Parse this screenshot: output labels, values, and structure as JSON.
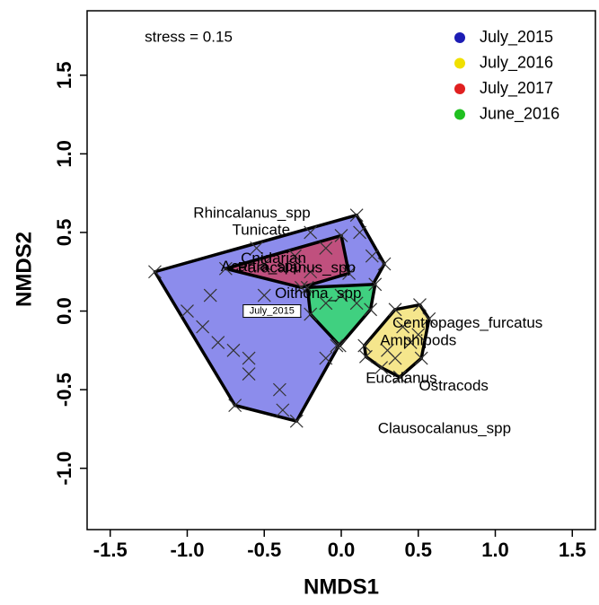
{
  "chart_data": {
    "type": "scatter",
    "annotation": "stress = 0.15",
    "xlabel": "NMDS1",
    "ylabel": "NMDS2",
    "xlim": [
      -1.65,
      1.65
    ],
    "ylim": [
      -1.39,
      1.91
    ],
    "xticks": [
      -1.5,
      {
        "value": -1,
        "label": "-1.0"
      },
      -0.5,
      {
        "value": 0,
        "label": "0.0"
      },
      0.5,
      {
        "value": 1,
        "label": "1.0"
      },
      1.5
    ],
    "yticks": [
      {
        "value": -1,
        "label": "-1.0"
      },
      -0.5,
      {
        "value": 0,
        "label": "0.0"
      },
      0.5,
      {
        "value": 1,
        "label": "1.0"
      },
      1.5
    ],
    "legend": "top-right",
    "series": [
      {
        "name": "July_2015",
        "color": "#1c1cb4",
        "fill": "#8c8cec",
        "x": [
          -1.21,
          0.1,
          0.28,
          -0.03,
          -0.29,
          -0.38,
          -0.69,
          -1.0,
          -0.8,
          -0.6,
          -0.7,
          -0.5,
          -0.4,
          -0.6,
          -0.2,
          -0.3,
          -0.9,
          -0.55,
          0.12,
          0.2,
          -0.1,
          -0.85
        ],
        "y": [
          0.25,
          0.61,
          0.3,
          -0.22,
          -0.7,
          -0.63,
          -0.6,
          0.0,
          -0.2,
          -0.3,
          -0.25,
          0.1,
          -0.5,
          -0.4,
          0.5,
          0.0,
          -0.1,
          0.4,
          0.5,
          0.35,
          -0.3,
          0.1
        ]
      },
      {
        "name": "July_2016",
        "color": "#f0e000",
        "fill": "#f5e68c",
        "x": [
          0.15,
          0.35,
          0.51,
          0.57,
          0.52,
          0.38,
          0.26,
          0.16,
          0.4,
          0.45,
          0.3,
          0.5,
          0.35
        ],
        "y": [
          -0.22,
          0.01,
          0.04,
          -0.05,
          -0.3,
          -0.42,
          -0.36,
          -0.29,
          -0.1,
          -0.2,
          -0.25,
          -0.15,
          -0.3
        ]
      },
      {
        "name": "July_2017",
        "color": "#e02020",
        "fill": "#c0507e",
        "x": [
          -0.75,
          0.0,
          0.05,
          -0.26,
          -0.5,
          -0.3,
          -0.1,
          -0.2
        ],
        "y": [
          0.27,
          0.48,
          0.24,
          0.15,
          0.3,
          0.35,
          0.4,
          0.25
        ]
      },
      {
        "name": "June_2016",
        "color": "#20c020",
        "fill": "#40d080",
        "x": [
          -0.22,
          0.22,
          0.19,
          -0.01,
          -0.2,
          0.0,
          0.1,
          -0.1
        ],
        "y": [
          0.15,
          0.17,
          0.01,
          -0.22,
          -0.02,
          0.1,
          0.05,
          0.05
        ]
      }
    ],
    "centroid_label": {
      "text": "July_2015",
      "x": -0.45,
      "y": 0.0
    },
    "species": [
      {
        "text": "Rhincalanus_spp",
        "x": -0.58,
        "y": 0.62
      },
      {
        "text": "Tunicate",
        "x": -0.52,
        "y": 0.51
      },
      {
        "text": "Acartia_spp",
        "x": -0.52,
        "y": 0.28
      },
      {
        "text": "Cnidarian",
        "x": -0.44,
        "y": 0.33
      },
      {
        "text": "Paracalanus_spp",
        "x": -0.29,
        "y": 0.27
      },
      {
        "text": "Oithona_spp",
        "x": -0.15,
        "y": 0.11
      },
      {
        "text": "Centropages_furcatus",
        "x": 0.82,
        "y": -0.08
      },
      {
        "text": "Amphipods",
        "x": 0.5,
        "y": -0.19
      },
      {
        "text": "Eucalanus",
        "x": 0.39,
        "y": -0.43
      },
      {
        "text": "Ostracods",
        "x": 0.73,
        "y": -0.48
      },
      {
        "text": "Clausocalanus_spp",
        "x": 0.67,
        "y": -0.75
      }
    ]
  }
}
